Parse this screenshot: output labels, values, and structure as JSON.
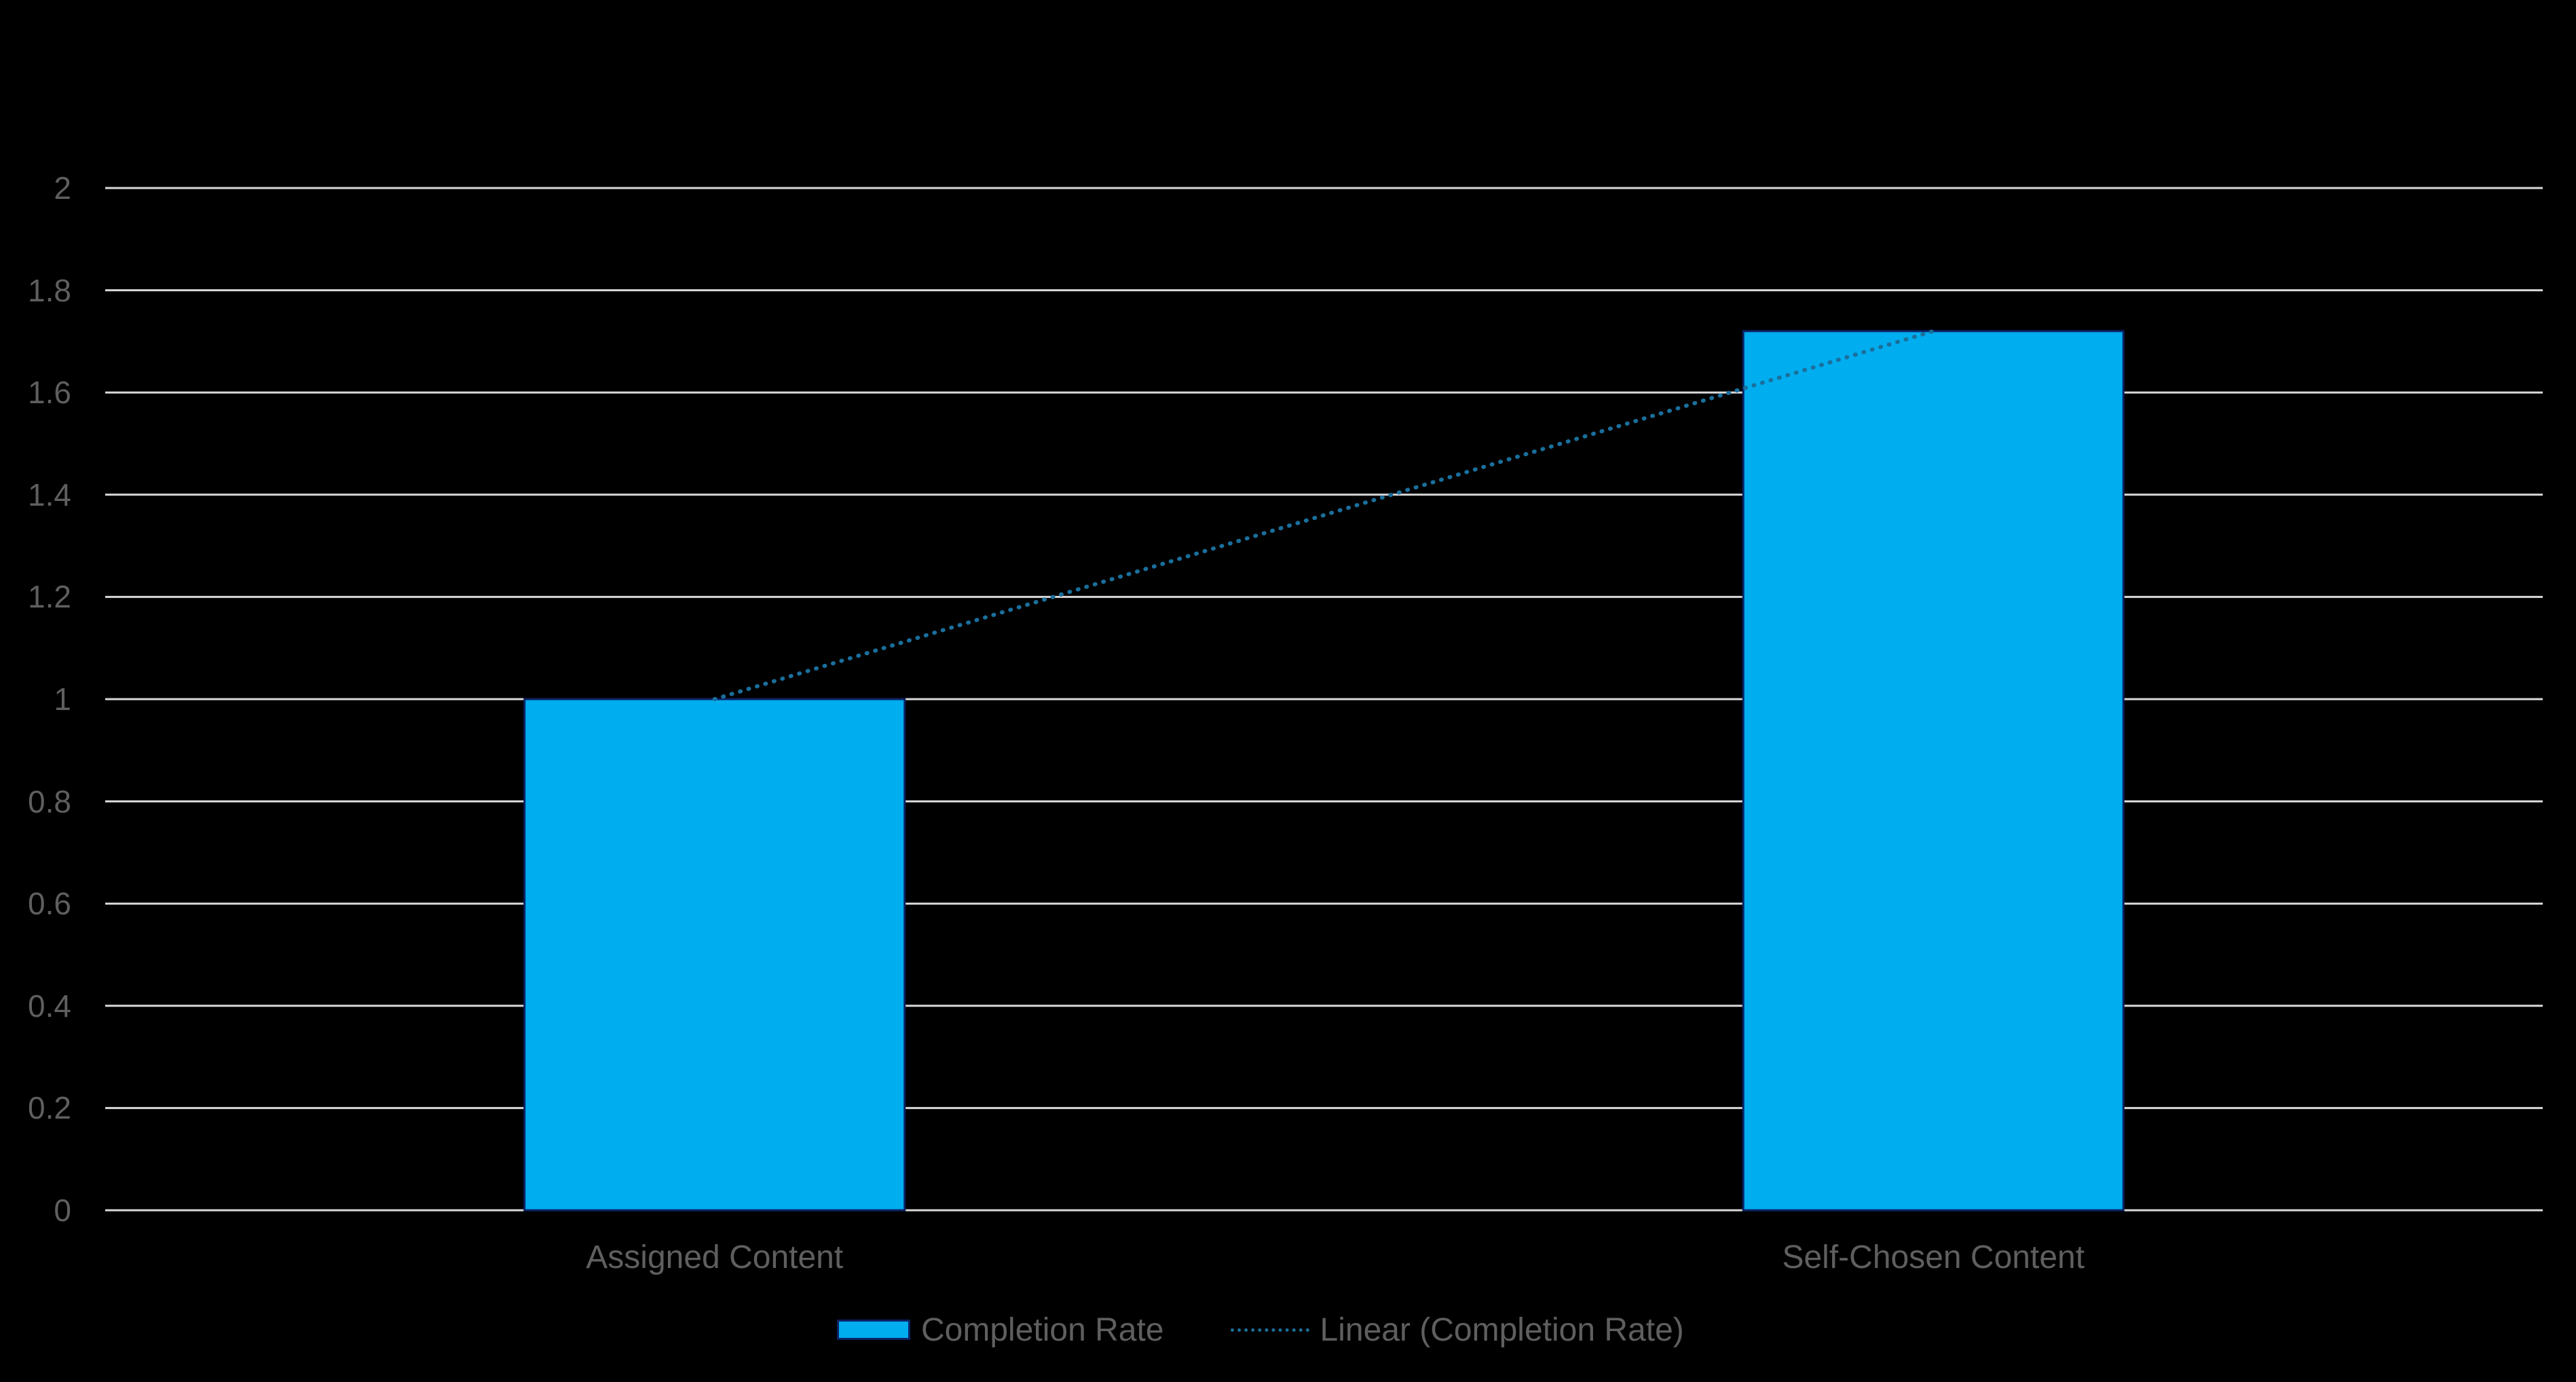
{
  "chart_data": {
    "type": "bar",
    "title": "",
    "xlabel": "",
    "ylabel": "",
    "categories": [
      "Assigned Content",
      "Self-Chosen Content"
    ],
    "series": [
      {
        "name": "Completion Rate",
        "values": [
          1.0,
          1.72
        ],
        "color": "#00adef",
        "border": "#0a2366"
      }
    ],
    "trendline": {
      "name": "Linear (Completion Rate)",
      "type": "linear",
      "style": "dotted",
      "color": "#1a6f9c",
      "values": [
        1.0,
        1.72
      ]
    },
    "ylim": [
      0,
      2
    ],
    "yticks": [
      "0",
      "0.2",
      "0.4",
      "0.6",
      "0.8",
      "1",
      "1.2",
      "1.4",
      "1.6",
      "1.8",
      "2"
    ],
    "grid": true,
    "legend_position": "bottom"
  },
  "legend": {
    "bar_label": "Completion Rate",
    "trend_label": "Linear (Completion Rate)"
  },
  "colors": {
    "background": "#000000",
    "gridline": "#d9d9d9",
    "text": "#5f5f5f"
  }
}
